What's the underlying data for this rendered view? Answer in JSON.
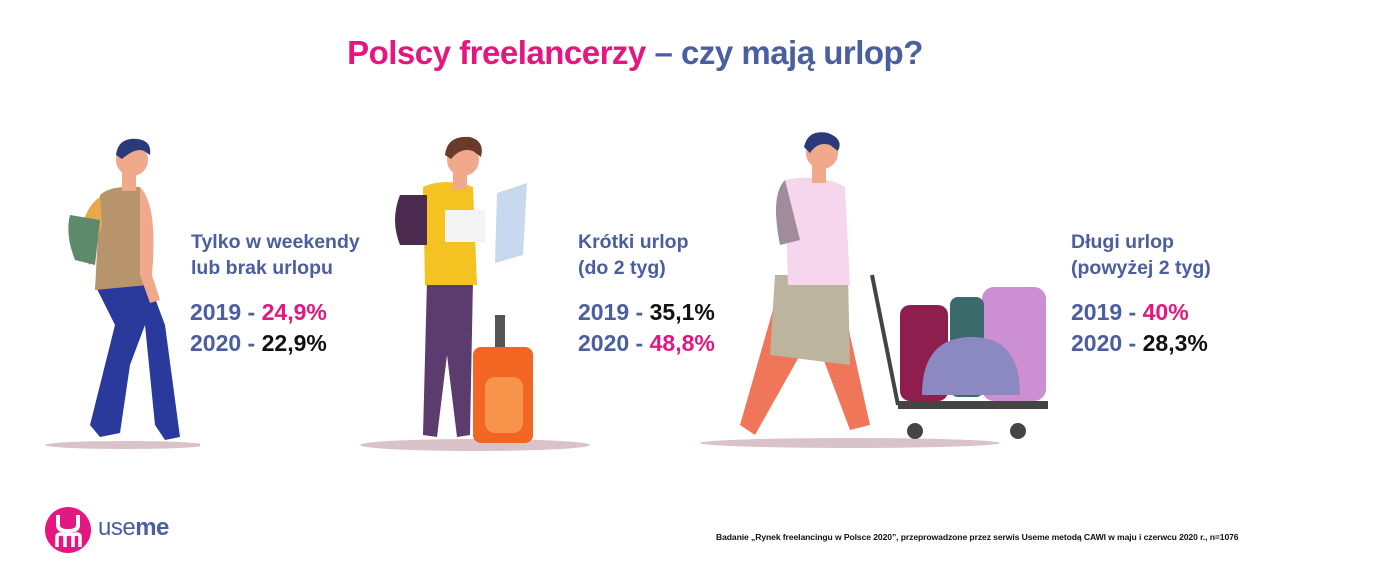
{
  "title": {
    "part1": "Polscy freelancerzy",
    "part2": "– czy mają urlop?"
  },
  "chart_data": {
    "type": "table",
    "title": "Polscy freelancerzy – czy mają urlop?",
    "categories": [
      {
        "label_line1": "Tylko w weekendy",
        "label_line2": "lub brak urlopu",
        "rows": [
          {
            "year": "2019",
            "value": 24.9,
            "display": "24,9%",
            "highlight": true
          },
          {
            "year": "2020",
            "value": 22.9,
            "display": "22,9%",
            "highlight": false
          }
        ]
      },
      {
        "label_line1": "Krótki urlop",
        "label_line2": "(do 2 tyg)",
        "rows": [
          {
            "year": "2019",
            "value": 35.1,
            "display": "35,1%",
            "highlight": false
          },
          {
            "year": "2020",
            "value": 48.8,
            "display": "48,8%",
            "highlight": true
          }
        ]
      },
      {
        "label_line1": "Długi urlop",
        "label_line2": "(powyżej 2 tyg)",
        "rows": [
          {
            "year": "2019",
            "value": 40,
            "display": "40%",
            "highlight": true
          },
          {
            "year": "2020",
            "value": 28.3,
            "display": "28,3%",
            "highlight": false
          }
        ]
      }
    ]
  },
  "footnote": "Badanie „Rynek freelancingu w Polsce 2020”, przeprowadzone przez serwis Useme metodą CAWI w maju i czerwcu 2020 r., n=1076",
  "logo": {
    "text_light": "use",
    "text_bold": "me"
  },
  "colors": {
    "pink": "#e3177f",
    "blue": "#4a5ea0"
  }
}
